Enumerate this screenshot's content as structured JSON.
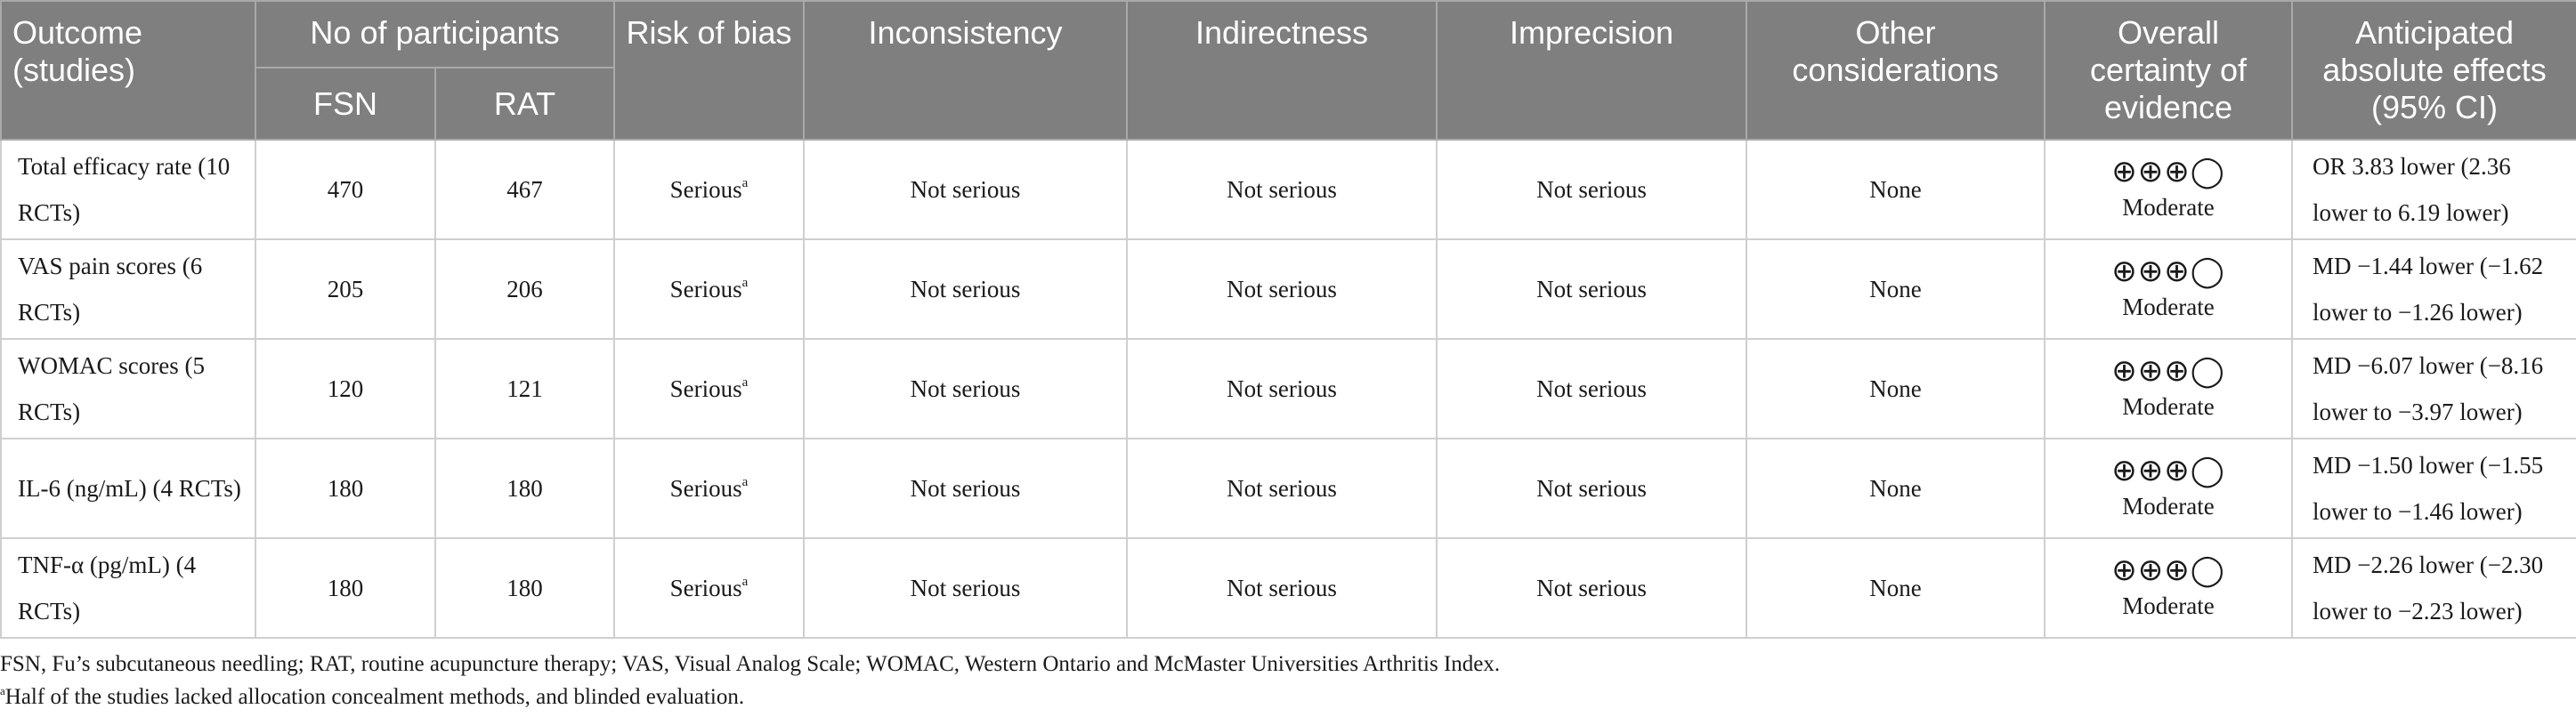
{
  "headers": {
    "outcome": "Outcome (studies)",
    "participants": "No of participants",
    "fsn": "FSN",
    "rat": "RAT",
    "risk_of_bias": "Risk of bias",
    "inconsistency": "Inconsistency",
    "indirectness": "Indirectness",
    "imprecision": "Imprecision",
    "other": "Other considerations",
    "certainty": "Overall certainty of evidence",
    "effects": "Anticipated absolute effects (95% CI)"
  },
  "rows": [
    {
      "outcome": "Total efficacy rate (10 RCTs)",
      "fsn": "470",
      "rat": "467",
      "risk": "Serious",
      "risk_note": "a",
      "inconsistency": "Not serious",
      "indirectness": "Not serious",
      "imprecision": "Not serious",
      "other": "None",
      "certainty_symbols": "⊕⊕⊕◯",
      "certainty": "Moderate",
      "effect": "OR 3.83 lower (2.36 lower to 6.19 lower)"
    },
    {
      "outcome": "VAS pain scores (6 RCTs)",
      "fsn": "205",
      "rat": "206",
      "risk": "Serious",
      "risk_note": "a",
      "inconsistency": "Not serious",
      "indirectness": "Not serious",
      "imprecision": "Not serious",
      "other": "None",
      "certainty_symbols": "⊕⊕⊕◯",
      "certainty": "Moderate",
      "effect": "MD −1.44 lower (−1.62 lower to −1.26 lower)"
    },
    {
      "outcome": "WOMAC scores (5 RCTs)",
      "fsn": "120",
      "rat": "121",
      "risk": "Serious",
      "risk_note": "a",
      "inconsistency": "Not serious",
      "indirectness": "Not serious",
      "imprecision": "Not serious",
      "other": "None",
      "certainty_symbols": "⊕⊕⊕◯",
      "certainty": "Moderate",
      "effect": "MD −6.07 lower (−8.16 lower to −3.97 lower)"
    },
    {
      "outcome": "IL-6 (ng/mL) (4 RCTs)",
      "fsn": "180",
      "rat": "180",
      "risk": "Serious",
      "risk_note": "a",
      "inconsistency": "Not serious",
      "indirectness": "Not serious",
      "imprecision": "Not serious",
      "other": "None",
      "certainty_symbols": "⊕⊕⊕◯",
      "certainty": "Moderate",
      "effect": "MD −1.50 lower (−1.55 lower to −1.46 lower)"
    },
    {
      "outcome": "TNF-α (pg/mL) (4 RCTs)",
      "fsn": "180",
      "rat": "180",
      "risk": "Serious",
      "risk_note": "a",
      "inconsistency": "Not serious",
      "indirectness": "Not serious",
      "imprecision": "Not serious",
      "other": "None",
      "certainty_symbols": "⊕⊕⊕◯",
      "certainty": "Moderate",
      "effect": "MD −2.26 lower (−2.30 lower to −2.23 lower)"
    }
  ],
  "footnotes": {
    "abbreviations": "FSN, Fu’s subcutaneous needling; RAT, routine acupuncture therapy; VAS, Visual Analog Scale; WOMAC, Western Ontario and McMaster Universities Arthritis Index.",
    "note_marker": "a",
    "note_text": "Half of the studies lacked allocation concealment methods, and blinded evaluation."
  },
  "colors": {
    "header_bg": "#7f7f7f",
    "header_text": "#ffffff",
    "grid_line": "#cfcfcf"
  }
}
